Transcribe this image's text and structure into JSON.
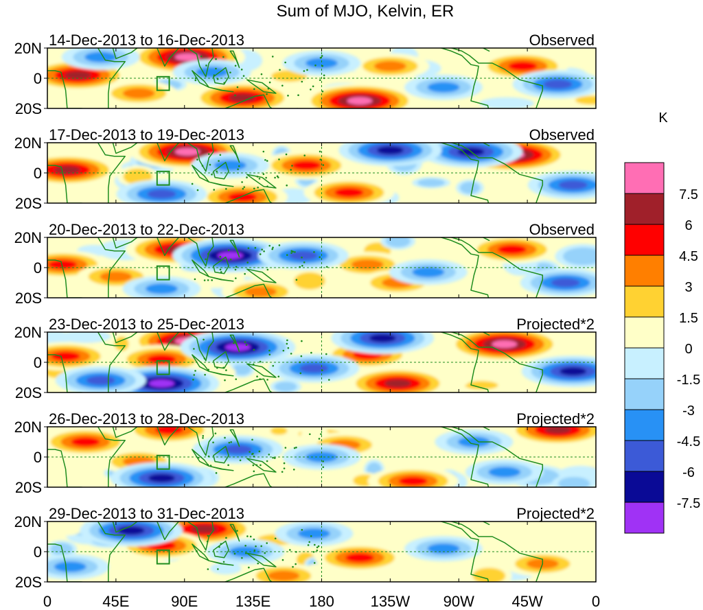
{
  "chart_data": {
    "type": "heatmap",
    "title": "Sum of MJO, Kelvin, ER",
    "colorbar": {
      "unit": "K",
      "levels": [
        "7.5",
        "6",
        "4.5",
        "3",
        "1.5",
        "0",
        "-1.5",
        "-3",
        "-4.5",
        "-6",
        "-7.5"
      ],
      "colors": [
        "#ff6eb4",
        "#a0202a",
        "#ff0000",
        "#ff7f00",
        "#ffd232",
        "#ffffc8",
        "#c8f0ff",
        "#96d2fa",
        "#2891f5",
        "#3c5ad7",
        "#0a0a96",
        "#a032f5"
      ]
    },
    "x_ticks": [
      "0",
      "45E",
      "90E",
      "135E",
      "180",
      "135W",
      "90W",
      "45W",
      "0"
    ],
    "y_ticks": [
      "20N",
      "0",
      "20S"
    ],
    "panels": [
      {
        "date": "14-Dec-2013 to 16-Dec-2013",
        "type": "Observed",
        "anomalies": [
          {
            "lon": 92,
            "lat": 14,
            "value": 8.5
          },
          {
            "lon": 20,
            "lat": 2,
            "value": 6.5
          },
          {
            "lon": 60,
            "lat": -10,
            "value": 4.0
          },
          {
            "lon": 128,
            "lat": -13,
            "value": 7.0
          },
          {
            "lon": 205,
            "lat": -15,
            "value": 8.0
          },
          {
            "lon": 312,
            "lat": 8,
            "value": 5.5
          },
          {
            "lon": 225,
            "lat": 8,
            "value": 3.5
          },
          {
            "lon": 180,
            "lat": 10,
            "value": -4.0
          },
          {
            "lon": 335,
            "lat": -4,
            "value": -4.5
          },
          {
            "lon": 108,
            "lat": 4,
            "value": -3.5
          },
          {
            "lon": 260,
            "lat": -6,
            "value": -3.5
          },
          {
            "lon": 35,
            "lat": 14,
            "value": -3.0
          }
        ]
      },
      {
        "date": "17-Dec-2013 to 19-Dec-2013",
        "type": "Observed",
        "anomalies": [
          {
            "lon": 92,
            "lat": 14,
            "value": 8.5
          },
          {
            "lon": 13,
            "lat": 2,
            "value": 6.5
          },
          {
            "lon": 170,
            "lat": 5,
            "value": 5.5
          },
          {
            "lon": 305,
            "lat": 12,
            "value": 8.0
          },
          {
            "lon": 198,
            "lat": -13,
            "value": 6.0
          },
          {
            "lon": 128,
            "lat": -16,
            "value": 5.0
          },
          {
            "lon": 278,
            "lat": 14,
            "value": -7.0
          },
          {
            "lon": 225,
            "lat": 15,
            "value": -6.0
          },
          {
            "lon": 120,
            "lat": 5,
            "value": -4.0
          },
          {
            "lon": 75,
            "lat": -14,
            "value": -5.0
          },
          {
            "lon": 345,
            "lat": -8,
            "value": -5.0
          }
        ]
      },
      {
        "date": "20-Dec-2013 to 22-Dec-2013",
        "type": "Observed",
        "anomalies": [
          {
            "lon": 85,
            "lat": 12,
            "value": 7.0
          },
          {
            "lon": 10,
            "lat": 2,
            "value": 6.0
          },
          {
            "lon": 120,
            "lat": 8,
            "value": -7.5
          },
          {
            "lon": 305,
            "lat": 12,
            "value": 5.0
          },
          {
            "lon": 210,
            "lat": 2,
            "value": 4.5
          },
          {
            "lon": 140,
            "lat": -16,
            "value": 4.5
          },
          {
            "lon": 230,
            "lat": -10,
            "value": 4.0
          },
          {
            "lon": 45,
            "lat": -6,
            "value": 3.5
          },
          {
            "lon": 168,
            "lat": 8,
            "value": -5.0
          },
          {
            "lon": 340,
            "lat": -10,
            "value": -5.0
          },
          {
            "lon": 75,
            "lat": -14,
            "value": -4.0
          },
          {
            "lon": 250,
            "lat": -3,
            "value": -3.5
          }
        ]
      },
      {
        "date": "23-Dec-2013 to 25-Dec-2013",
        "type": "Projected*2",
        "anomalies": [
          {
            "lon": 92,
            "lat": 14,
            "value": 8.5
          },
          {
            "lon": 300,
            "lat": 12,
            "value": 8.0
          },
          {
            "lon": 75,
            "lat": 2,
            "value": 6.0
          },
          {
            "lon": 12,
            "lat": 4,
            "value": 6.0
          },
          {
            "lon": 230,
            "lat": -14,
            "value": 6.5
          },
          {
            "lon": 210,
            "lat": 5,
            "value": 5.0
          },
          {
            "lon": 125,
            "lat": 10,
            "value": -8.0
          },
          {
            "lon": 75,
            "lat": -14,
            "value": -7.5
          },
          {
            "lon": 220,
            "lat": 16,
            "value": -7.0
          },
          {
            "lon": 345,
            "lat": -6,
            "value": -6.0
          },
          {
            "lon": 175,
            "lat": -4,
            "value": -5.0
          },
          {
            "lon": 35,
            "lat": -12,
            "value": -4.5
          }
        ]
      },
      {
        "date": "26-Dec-2013 to 28-Dec-2013",
        "type": "Projected*2",
        "anomalies": [
          {
            "lon": 25,
            "lat": 10,
            "value": 6.0
          },
          {
            "lon": 80,
            "lat": 18,
            "value": 5.0
          },
          {
            "lon": 335,
            "lat": 18,
            "value": 6.5
          },
          {
            "lon": 240,
            "lat": -16,
            "value": 5.0
          },
          {
            "lon": 195,
            "lat": 8,
            "value": 3.5
          },
          {
            "lon": 60,
            "lat": -3,
            "value": 3.5
          },
          {
            "lon": 75,
            "lat": -14,
            "value": -6.0
          },
          {
            "lon": 125,
            "lat": 5,
            "value": -4.5
          },
          {
            "lon": 180,
            "lat": 0,
            "value": -4.0
          },
          {
            "lon": 300,
            "lat": -10,
            "value": -4.0
          },
          {
            "lon": 280,
            "lat": 10,
            "value": -4.0
          }
        ]
      },
      {
        "date": "29-Dec-2013 to 31-Dec-2013",
        "type": "Projected*2",
        "anomalies": [
          {
            "lon": 103,
            "lat": 15,
            "value": 7.0
          },
          {
            "lon": 75,
            "lat": 4,
            "value": 5.0
          },
          {
            "lon": 205,
            "lat": -4,
            "value": 5.0
          },
          {
            "lon": 155,
            "lat": -16,
            "value": 4.0
          },
          {
            "lon": 325,
            "lat": -8,
            "value": 4.5
          },
          {
            "lon": 55,
            "lat": 14,
            "value": -6.5
          },
          {
            "lon": 175,
            "lat": 12,
            "value": -3.5
          },
          {
            "lon": 130,
            "lat": 0,
            "value": -4.0
          },
          {
            "lon": 260,
            "lat": 2,
            "value": -3.5
          },
          {
            "lon": 15,
            "lat": -10,
            "value": -3.0
          }
        ]
      }
    ]
  }
}
